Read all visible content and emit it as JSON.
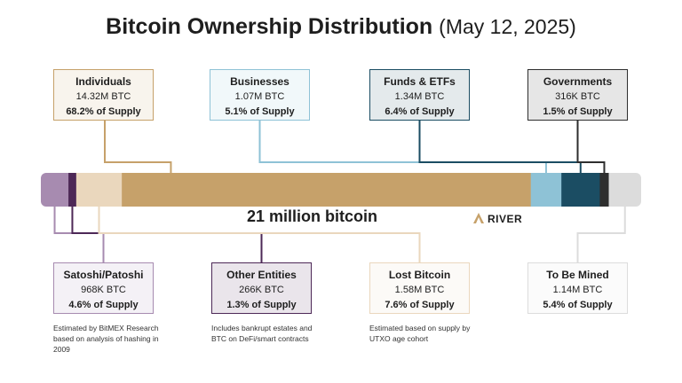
{
  "title": "Bitcoin Ownership Distribution",
  "date": "(May 12, 2025)",
  "bar_label": "21 million bitcoin",
  "brand": "RIVER",
  "colors": {
    "individuals": "#c6a16a",
    "businesses": "#8ec2d6",
    "funds": "#1b4d63",
    "governments": "#2e2e2e",
    "satoshi": "#a78bb0",
    "other_entities": "#4d2857",
    "lost": "#ead7bd",
    "to_be_mined": "#dcdcdc"
  },
  "chart_data": {
    "type": "bar",
    "orientation": "horizontal-stacked",
    "total_label": "21 million bitcoin",
    "segments": [
      {
        "key": "satoshi",
        "name": "Satoshi/Patoshi",
        "btc": "968K BTC",
        "supply": "4.6% of Supply",
        "percent": 4.6,
        "note": "Estimated by BitMEX Research based on analysis of hashing in 2009"
      },
      {
        "key": "other_entities",
        "name": "Other Entities",
        "btc": "266K BTC",
        "supply": "1.3% of Supply",
        "percent": 1.3,
        "note": "Includes bankrupt estates and BTC on DeFi/smart contracts"
      },
      {
        "key": "lost",
        "name": "Lost Bitcoin",
        "btc": "1.58M BTC",
        "supply": "7.6% of Supply",
        "percent": 7.6,
        "note": "Estimated based on supply by UTXO age cohort"
      },
      {
        "key": "individuals",
        "name": "Individuals",
        "btc": "14.32M BTC",
        "supply": "68.2% of Supply",
        "percent": 68.2
      },
      {
        "key": "businesses",
        "name": "Businesses",
        "btc": "1.07M BTC",
        "supply": "5.1% of Supply",
        "percent": 5.1
      },
      {
        "key": "funds",
        "name": "Funds & ETFs",
        "btc": "1.34M BTC",
        "supply": "6.4% of Supply",
        "percent": 6.4
      },
      {
        "key": "governments",
        "name": "Governments",
        "btc": "316K BTC",
        "supply": "1.5% of Supply",
        "percent": 1.5
      },
      {
        "key": "to_be_mined",
        "name": "To Be Mined",
        "btc": "1.14M BTC",
        "supply": "5.4% of Supply",
        "percent": 5.4
      }
    ]
  }
}
